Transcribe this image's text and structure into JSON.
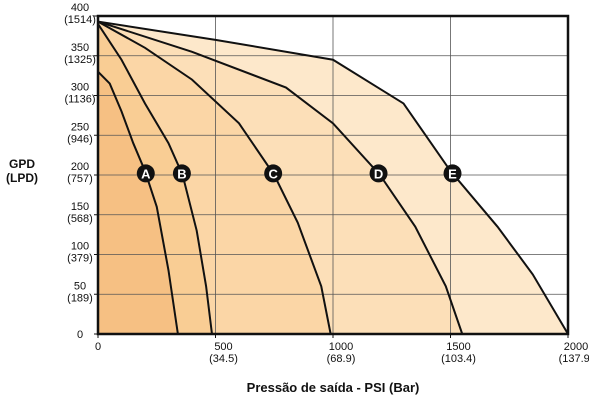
{
  "chart_data": {
    "type": "line",
    "x_label": "Pressão de saída - PSI (Bar)",
    "y_label": "GPD\n(LPD)",
    "xlim": [
      0,
      2000
    ],
    "ylim": [
      0,
      400
    ],
    "xticks": [
      0,
      {
        "value": 500,
        "label": "500\n(34.5)"
      },
      {
        "value": 1000,
        "label": "1000\n(68.9)"
      },
      {
        "value": 1500,
        "label": "1500\n(103.4)"
      },
      {
        "value": 2000,
        "label": "2000\n(137.9)"
      }
    ],
    "yticks": [
      0,
      {
        "value": 50,
        "label": "50\n(189)"
      },
      {
        "value": 100,
        "label": "100\n(379)"
      },
      {
        "value": 150,
        "label": "150\n(568)"
      },
      {
        "value": 200,
        "label": "200\n(757)"
      },
      {
        "value": 250,
        "label": "250\n(946)"
      },
      {
        "value": 300,
        "label": "300\n(1136)"
      },
      {
        "value": 350,
        "label": "350\n(1325)"
      },
      {
        "value": 400,
        "label": "400\n(1514)"
      }
    ],
    "grid": true,
    "series": [
      {
        "name": "E",
        "color": "#fde8cb",
        "x": [
          0,
          500,
          1000,
          1300,
          1500,
          1700,
          1850,
          2000
        ],
        "values": [
          393,
          370,
          345,
          290,
          205,
          135,
          75,
          0
        ]
      },
      {
        "name": "D",
        "color": "#fcdfb8",
        "x": [
          0,
          400,
          800,
          1000,
          1200,
          1350,
          1480,
          1550
        ],
        "values": [
          393,
          355,
          310,
          265,
          200,
          135,
          60,
          0
        ]
      },
      {
        "name": "C",
        "color": "#fbd6a6",
        "x": [
          0,
          200,
          400,
          600,
          750,
          850,
          950,
          990
        ],
        "values": [
          393,
          360,
          320,
          265,
          200,
          140,
          60,
          0
        ]
      },
      {
        "name": "B",
        "color": "#f9cd94",
        "x": [
          0,
          100,
          200,
          300,
          360,
          420,
          460,
          485
        ],
        "values": [
          390,
          345,
          290,
          240,
          200,
          130,
          60,
          0
        ]
      },
      {
        "name": "A",
        "color": "#f6c083",
        "x": [
          0,
          50,
          100,
          150,
          200,
          250,
          300,
          340
        ],
        "values": [
          330,
          315,
          280,
          240,
          205,
          160,
          80,
          0
        ]
      }
    ]
  }
}
